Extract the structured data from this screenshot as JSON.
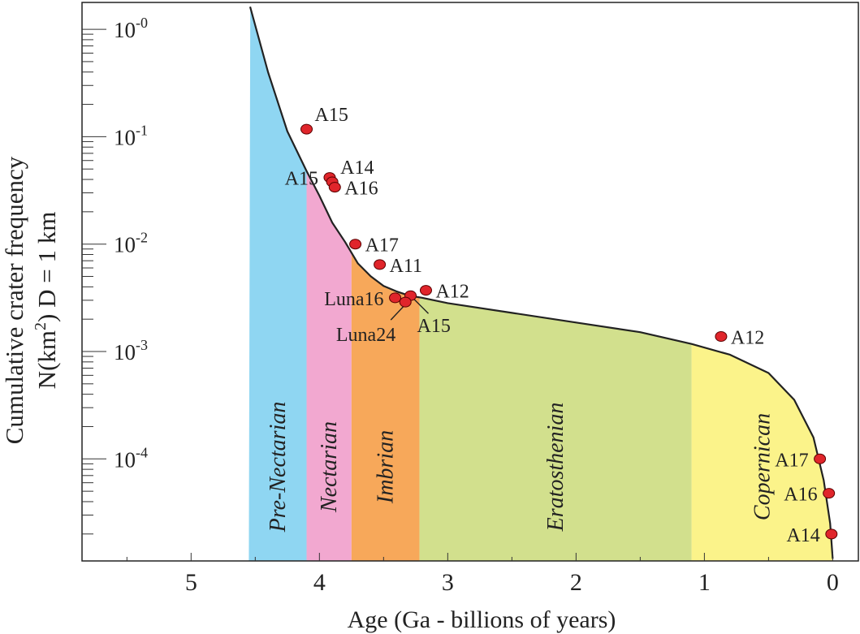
{
  "chart_data": {
    "type": "line",
    "title": "",
    "ylabel_line1": "Cumulative crater frequency",
    "ylabel_line2_parts": [
      "N(km",
      "2",
      ") D = 1 km"
    ],
    "xlabel": "Age (Ga - billions of years)",
    "x_reversed": true,
    "xlim": [
      5.85,
      -0.2
    ],
    "x_ticks": [
      {
        "value": 5,
        "label": "5"
      },
      {
        "value": 4,
        "label": "4"
      },
      {
        "value": 3,
        "label": "3"
      },
      {
        "value": 2,
        "label": "2"
      },
      {
        "value": 1,
        "label": "1"
      },
      {
        "value": 0,
        "label": "0"
      }
    ],
    "y_scale": "log",
    "ylim_log10": [
      -4.95,
      0.25
    ],
    "y_ticks": [
      {
        "log10": 0,
        "base": "10",
        "exp": "-0"
      },
      {
        "log10": -1,
        "base": "10",
        "exp": "-1"
      },
      {
        "log10": -2,
        "base": "10",
        "exp": "-2"
      },
      {
        "log10": -3,
        "base": "10",
        "exp": "-3"
      },
      {
        "log10": -4,
        "base": "10",
        "exp": "-4"
      }
    ],
    "periods": [
      {
        "name": "Pre-Nectarian",
        "start": 4.55,
        "end": 4.1,
        "color": "#8fd6f2"
      },
      {
        "name": "Nectarian",
        "start": 4.1,
        "end": 3.75,
        "color": "#f2a8d0"
      },
      {
        "name": "Imbrian",
        "start": 3.75,
        "end": 3.22,
        "color": "#f7a85a"
      },
      {
        "name": "Eratosthenian",
        "start": 3.22,
        "end": 1.1,
        "color": "#d2e08d"
      },
      {
        "name": "Copernican",
        "start": 1.1,
        "end": 0.0,
        "color": "#fbf38a"
      }
    ],
    "curve": {
      "color": "#222222",
      "points": [
        [
          4.54,
          0.21
        ],
        [
          4.4,
          -0.4
        ],
        [
          4.25,
          -0.95
        ],
        [
          4.1,
          -1.32
        ],
        [
          4.0,
          -1.55
        ],
        [
          3.9,
          -1.8
        ],
        [
          3.8,
          -1.98
        ],
        [
          3.7,
          -2.18
        ],
        [
          3.6,
          -2.3
        ],
        [
          3.5,
          -2.39
        ],
        [
          3.4,
          -2.44
        ],
        [
          3.3,
          -2.48
        ],
        [
          3.2,
          -2.5
        ],
        [
          3.0,
          -2.55
        ],
        [
          2.5,
          -2.64
        ],
        [
          2.0,
          -2.73
        ],
        [
          1.5,
          -2.82
        ],
        [
          1.1,
          -2.93
        ],
        [
          0.8,
          -3.03
        ],
        [
          0.5,
          -3.2
        ],
        [
          0.3,
          -3.45
        ],
        [
          0.15,
          -3.8
        ],
        [
          0.07,
          -4.2
        ],
        [
          0.02,
          -4.6
        ],
        [
          0.0,
          -4.93
        ]
      ]
    },
    "samples": [
      {
        "label": "A15",
        "age": 4.1,
        "log10N": -0.93,
        "label_pos": "above-right"
      },
      {
        "label": "A15",
        "age": 3.92,
        "log10N": -1.38,
        "label_pos": "left"
      },
      {
        "label": "A14",
        "age": 3.9,
        "log10N": -1.42,
        "label_pos": "above-right"
      },
      {
        "label": "A16",
        "age": 3.88,
        "log10N": -1.47,
        "label_pos": "right"
      },
      {
        "label": "A17",
        "age": 3.72,
        "log10N": -2.0,
        "label_pos": "right"
      },
      {
        "label": "A11",
        "age": 3.53,
        "log10N": -2.19,
        "label_pos": "right"
      },
      {
        "label": "A12",
        "age": 3.17,
        "log10N": -2.43,
        "label_pos": "right"
      },
      {
        "label": "Luna16",
        "age": 3.41,
        "log10N": -2.5,
        "label_pos": "left"
      },
      {
        "label": "A15",
        "age": 3.29,
        "log10N": -2.48,
        "label_pos": "below-right"
      },
      {
        "label": "Luna24",
        "age": 3.33,
        "log10N": -2.54,
        "label_pos": "below-left"
      },
      {
        "label": "A12",
        "age": 0.87,
        "log10N": -2.86,
        "label_pos": "right"
      },
      {
        "label": "A17",
        "age": 0.1,
        "log10N": -4.0,
        "label_pos": "left"
      },
      {
        "label": "A16",
        "age": 0.03,
        "log10N": -4.32,
        "label_pos": "left"
      },
      {
        "label": "A14",
        "age": 0.01,
        "log10N": -4.7,
        "label_pos": "left"
      }
    ],
    "sample_color": "#e0252b",
    "grid": false
  }
}
